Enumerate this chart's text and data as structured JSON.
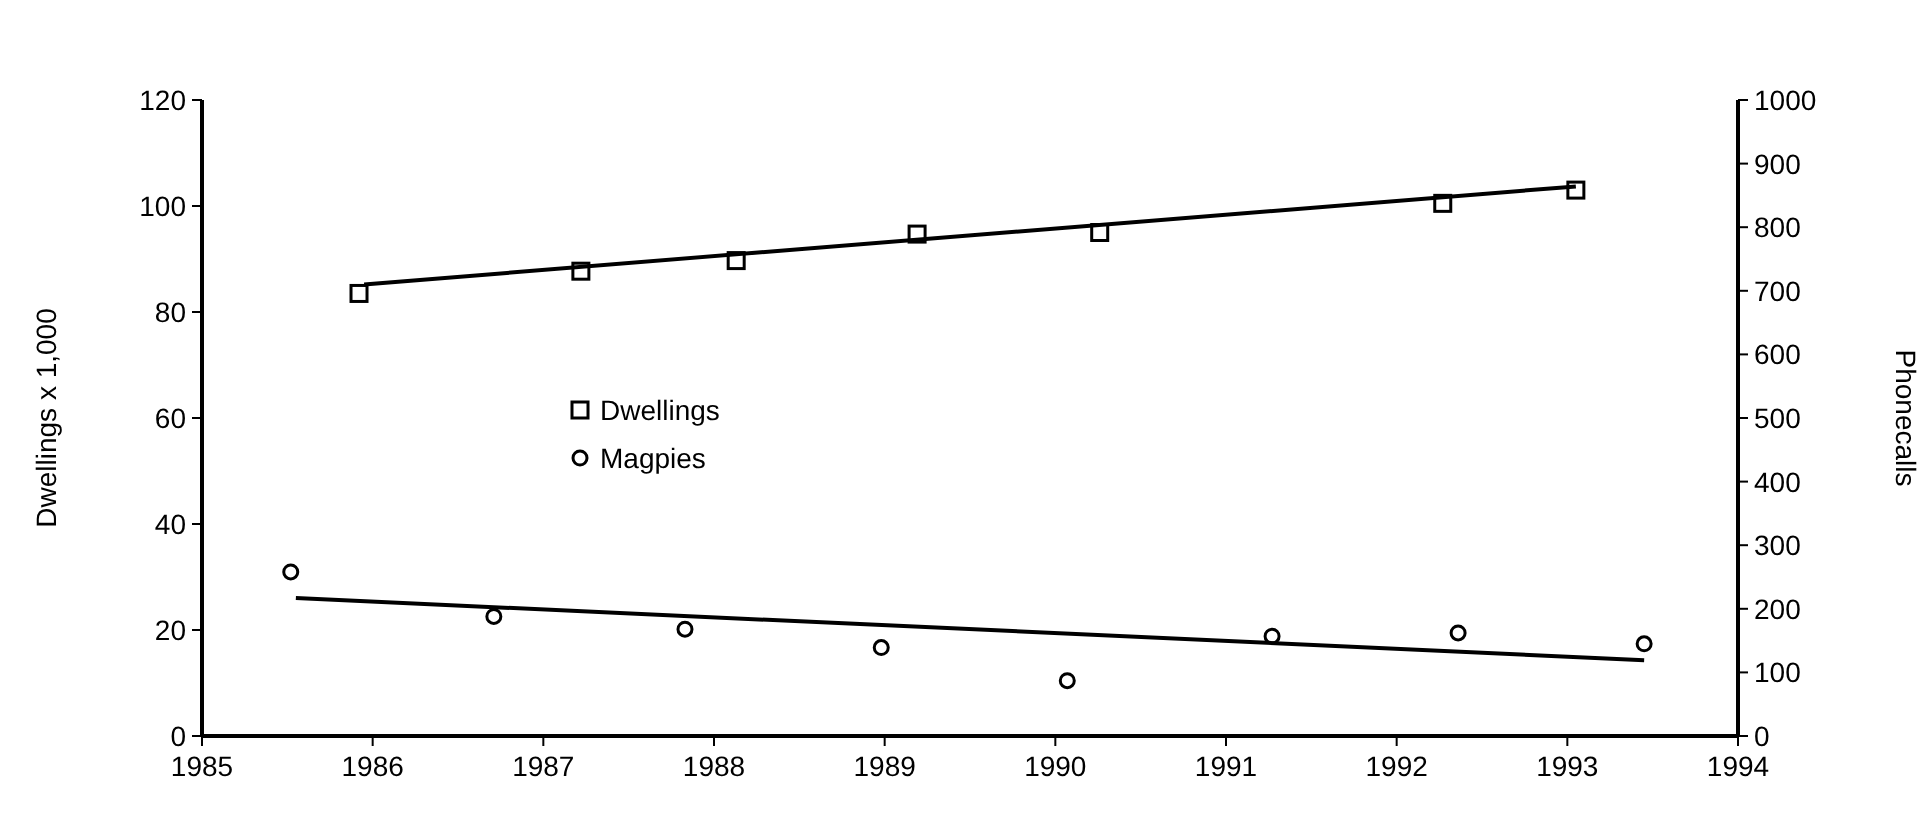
{
  "chart_data": {
    "type": "scatter",
    "ylabel": "Dwellings x 1,000",
    "y2label": "Phonecalls",
    "xlim": [
      1985,
      1994
    ],
    "xticks": [
      1985,
      1986,
      1987,
      1988,
      1989,
      1990,
      1991,
      1992,
      1993,
      1994
    ],
    "ylim": [
      0,
      120
    ],
    "yticks": [
      0,
      20,
      40,
      60,
      80,
      100,
      120
    ],
    "y2lim": [
      0,
      1000
    ],
    "y2ticks": [
      0,
      100,
      200,
      300,
      400,
      500,
      600,
      700,
      800,
      900,
      1000
    ],
    "grid": false,
    "legend": "left",
    "series": [
      {
        "name": "Dwellings",
        "marker": "square",
        "color": "#000000",
        "x": [
          1985.92,
          1987.22,
          1988.13,
          1989.19,
          1990.26,
          1992.27,
          1993.05
        ],
        "values": [
          83.5,
          87.7,
          89.7,
          94.7,
          95,
          100.5,
          103
        ]
      },
      {
        "type": "line",
        "marker": "none",
        "color": "#000000",
        "x": [
          1985.95,
          1993.05
        ],
        "values": [
          85.2,
          103.7
        ]
      },
      {
        "name": "Magpies",
        "marker": "circle",
        "axis": "y2",
        "color": "#000000",
        "x": [
          1985.52,
          1986.71,
          1987.83,
          1988.98,
          1990.07,
          1991.27,
          1992.36,
          1993.45
        ],
        "values": [
          258,
          188,
          168,
          139,
          87,
          157,
          162,
          145
        ]
      },
      {
        "type": "line",
        "marker": "none",
        "axis": "y2",
        "color": "#000000",
        "x": [
          1985.55,
          1993.45
        ],
        "values": [
          217,
          119
        ]
      }
    ]
  }
}
